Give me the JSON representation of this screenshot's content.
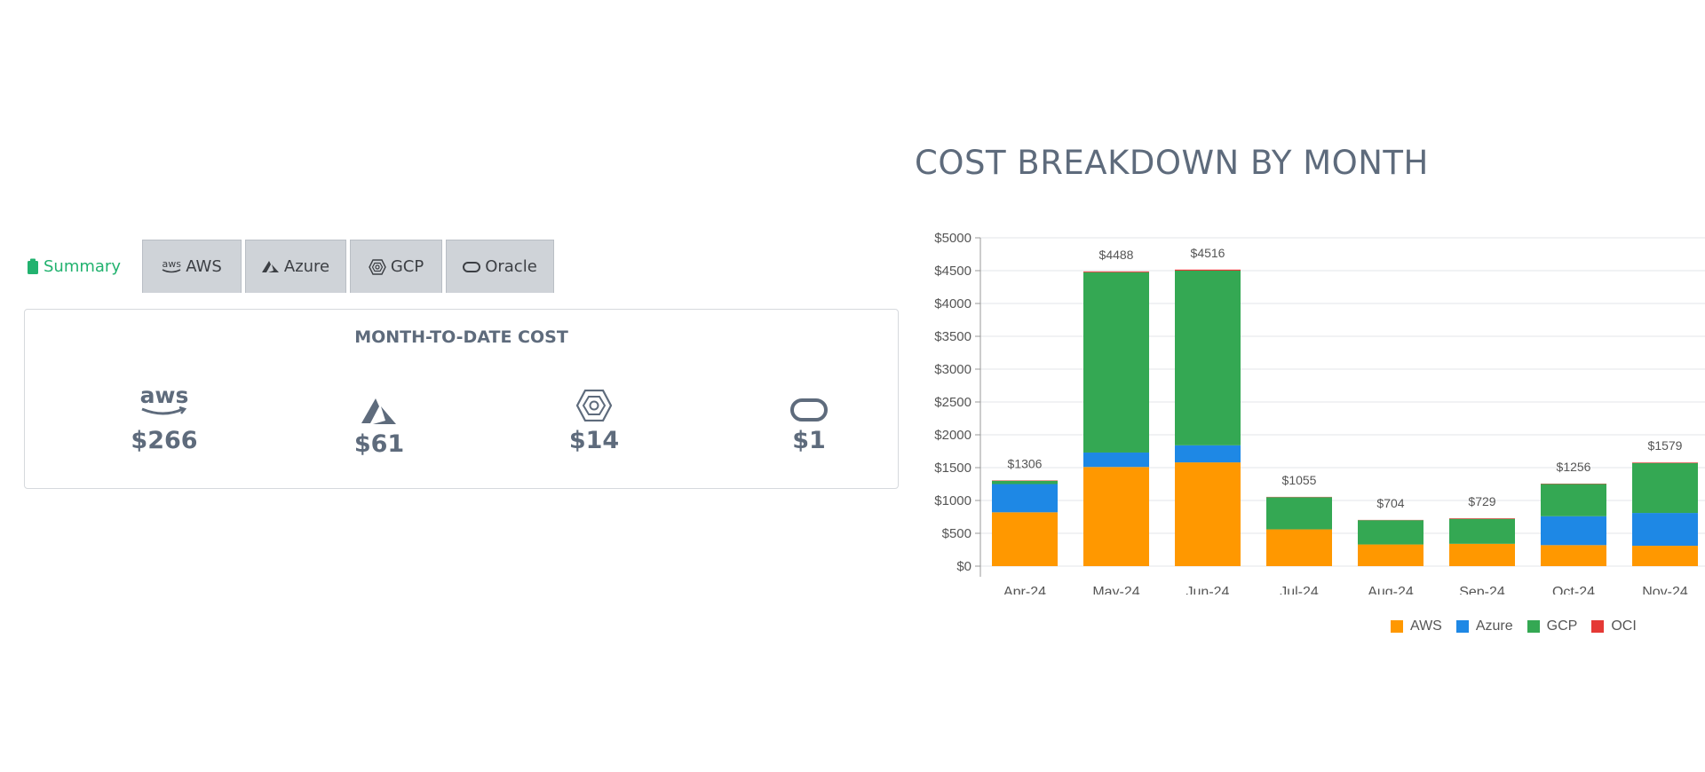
{
  "tabs": [
    {
      "id": "summary",
      "label": "Summary",
      "active": true
    },
    {
      "id": "aws",
      "label": "AWS",
      "icon_text": "aws"
    },
    {
      "id": "azure",
      "label": "Azure"
    },
    {
      "id": "gcp",
      "label": "GCP"
    },
    {
      "id": "oracle",
      "label": "Oracle"
    }
  ],
  "summary_card": {
    "title": "MONTH-TO-DATE COST",
    "aws_logo_text": "aws",
    "providers": [
      {
        "id": "aws",
        "icon": "aws-icon",
        "amount": "$266"
      },
      {
        "id": "azure",
        "icon": "azure-icon",
        "amount": "$61"
      },
      {
        "id": "gcp",
        "icon": "gcp-icon",
        "amount": "$14"
      },
      {
        "id": "oracle",
        "icon": "oracle-icon",
        "amount": "$1"
      }
    ]
  },
  "colors": {
    "AWS": "#ff9800",
    "Azure": "#1e88e5",
    "GCP": "#34a853",
    "OCI": "#e53935",
    "active_tab": "#22b26f"
  },
  "chart_data": {
    "type": "bar",
    "stacked": true,
    "title": "COST BREAKDOWN BY MONTH",
    "categories": [
      "Apr-24",
      "May-24",
      "Jun-24",
      "Jul-24",
      "Aug-24",
      "Sep-24",
      "Oct-24",
      "Nov-24"
    ],
    "series": [
      {
        "name": "AWS",
        "values": [
          820,
          1510,
          1580,
          560,
          330,
          340,
          320,
          310
        ]
      },
      {
        "name": "Azure",
        "values": [
          430,
          220,
          260,
          0,
          0,
          0,
          440,
          500
        ]
      },
      {
        "name": "GCP",
        "values": [
          50,
          2745,
          2660,
          490,
          370,
          380,
          490,
          760
        ]
      },
      {
        "name": "OCI",
        "values": [
          6,
          13,
          16,
          5,
          4,
          9,
          6,
          9
        ]
      }
    ],
    "totals": [
      "$1306",
      "$4488",
      "$4516",
      "$1055",
      "$704",
      "$729",
      "$1256",
      "$1579"
    ],
    "y_ticks": [
      "$0",
      "$500",
      "$1000",
      "$1500",
      "$2000",
      "$2500",
      "$3000",
      "$3500",
      "$4000",
      "$4500",
      "$5000"
    ],
    "ylim": [
      0,
      5000
    ],
    "grid": true,
    "legend": [
      "AWS",
      "Azure",
      "GCP",
      "OCI"
    ],
    "legend_position": "bottom-right"
  }
}
